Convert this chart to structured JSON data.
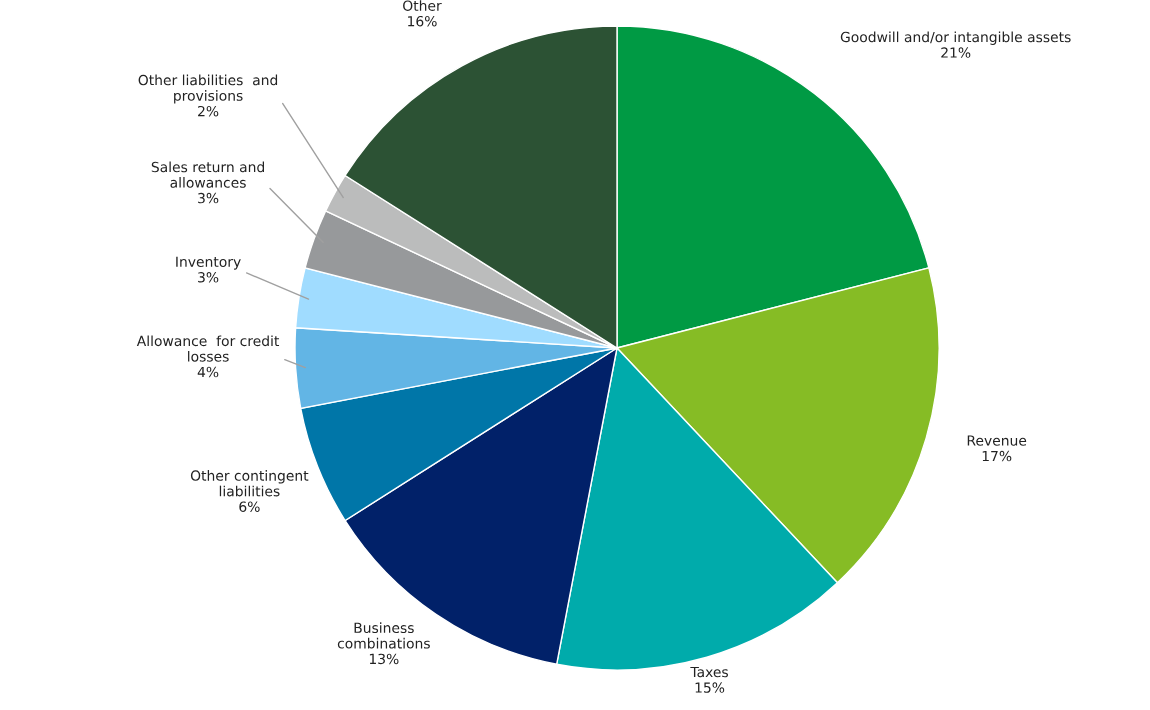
{
  "chart_data": {
    "type": "pie",
    "categories": [
      "Goodwill and/or intangible assets",
      "Revenue",
      "Taxes",
      "Business\ncombinations",
      "Other contingent\nliabilities",
      "Allowance  for credit\nlosses",
      "Inventory",
      "Sales return and\nallowances",
      "Other liabilities  and\nprovisions",
      "Other"
    ],
    "values": [
      21,
      17,
      15,
      13,
      6,
      4,
      3,
      3,
      2,
      16
    ],
    "colors": [
      "#009a44",
      "#86bc25",
      "#00abab",
      "#012169",
      "#0076a8",
      "#62b5e5",
      "#a0dcff",
      "#97999b",
      "#bbbcbc",
      "#2c5234"
    ],
    "value_labels": [
      "21%",
      "17%",
      "15%",
      "13%",
      "6%",
      "4%",
      "3%",
      "3%",
      "2%",
      "16%"
    ]
  }
}
